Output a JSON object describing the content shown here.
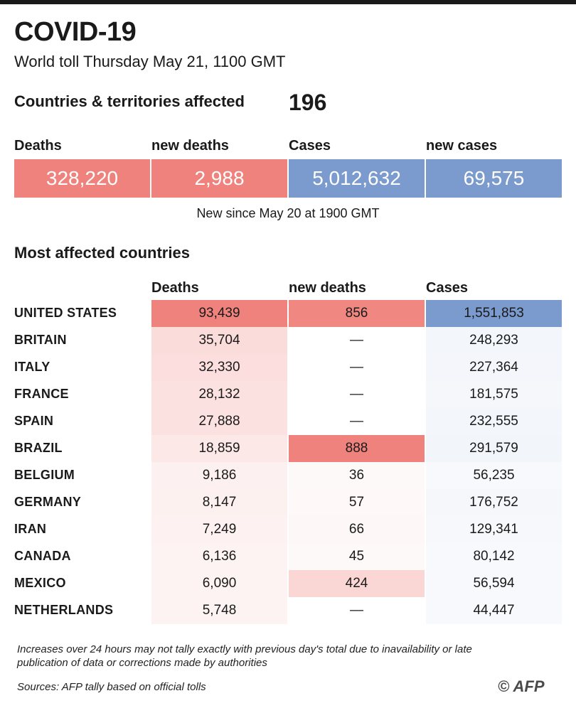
{
  "header": {
    "title": "COVID-19",
    "subtitle": "World toll Thursday May 21, 1100 GMT",
    "affected_label": "Countries & territories affected",
    "affected_value": "196"
  },
  "totals": {
    "labels": [
      "Deaths",
      "new deaths",
      "Cases",
      "new cases"
    ],
    "values": [
      "328,220",
      "2,988",
      "5,012,632",
      "69,575"
    ],
    "note": "New since May 20 at 1900 GMT"
  },
  "colors": {
    "deaths": "#ef827c",
    "cases": "#7b9acd",
    "white": "#ffffff"
  },
  "chart_data": {
    "type": "table",
    "title": "Most affected countries",
    "columns": [
      "Deaths",
      "new deaths",
      "Cases"
    ],
    "rows": [
      {
        "country": "UNITED STATES",
        "deaths": 93439,
        "new_deaths": 856,
        "cases": 1551853,
        "deaths_label": "93,439",
        "new_deaths_label": "856",
        "cases_label": "1,551,853"
      },
      {
        "country": "BRITAIN",
        "deaths": 35704,
        "new_deaths": null,
        "cases": 248293,
        "deaths_label": "35,704",
        "new_deaths_label": "—",
        "cases_label": "248,293"
      },
      {
        "country": "ITALY",
        "deaths": 32330,
        "new_deaths": null,
        "cases": 227364,
        "deaths_label": "32,330",
        "new_deaths_label": "—",
        "cases_label": "227,364"
      },
      {
        "country": "FRANCE",
        "deaths": 28132,
        "new_deaths": null,
        "cases": 181575,
        "deaths_label": "28,132",
        "new_deaths_label": "—",
        "cases_label": "181,575"
      },
      {
        "country": "SPAIN",
        "deaths": 27888,
        "new_deaths": null,
        "cases": 232555,
        "deaths_label": "27,888",
        "new_deaths_label": "—",
        "cases_label": "232,555"
      },
      {
        "country": "BRAZIL",
        "deaths": 18859,
        "new_deaths": 888,
        "cases": 291579,
        "deaths_label": "18,859",
        "new_deaths_label": "888",
        "cases_label": "291,579"
      },
      {
        "country": "BELGIUM",
        "deaths": 9186,
        "new_deaths": 36,
        "cases": 56235,
        "deaths_label": "9,186",
        "new_deaths_label": "36",
        "cases_label": "56,235"
      },
      {
        "country": "GERMANY",
        "deaths": 8147,
        "new_deaths": 57,
        "cases": 176752,
        "deaths_label": "8,147",
        "new_deaths_label": "57",
        "cases_label": "176,752"
      },
      {
        "country": "IRAN",
        "deaths": 7249,
        "new_deaths": 66,
        "cases": 129341,
        "deaths_label": "7,249",
        "new_deaths_label": "66",
        "cases_label": "129,341"
      },
      {
        "country": "CANADA",
        "deaths": 6136,
        "new_deaths": 45,
        "cases": 80142,
        "deaths_label": "6,136",
        "new_deaths_label": "45",
        "cases_label": "80,142"
      },
      {
        "country": "MEXICO",
        "deaths": 6090,
        "new_deaths": 424,
        "cases": 56594,
        "deaths_label": "6,090",
        "new_deaths_label": "424",
        "cases_label": "56,594"
      },
      {
        "country": "NETHERLANDS",
        "deaths": 5748,
        "new_deaths": null,
        "cases": 44447,
        "deaths_label": "5,748",
        "new_deaths_label": "—",
        "cases_label": "44,447"
      }
    ]
  },
  "footer": {
    "note": "Increases over 24 hours may not tally exactly with previous day's total due to inavailability or late publication of data or corrections made by authorities",
    "source": "Sources: AFP tally based on official tolls",
    "logo": "© AFP"
  }
}
